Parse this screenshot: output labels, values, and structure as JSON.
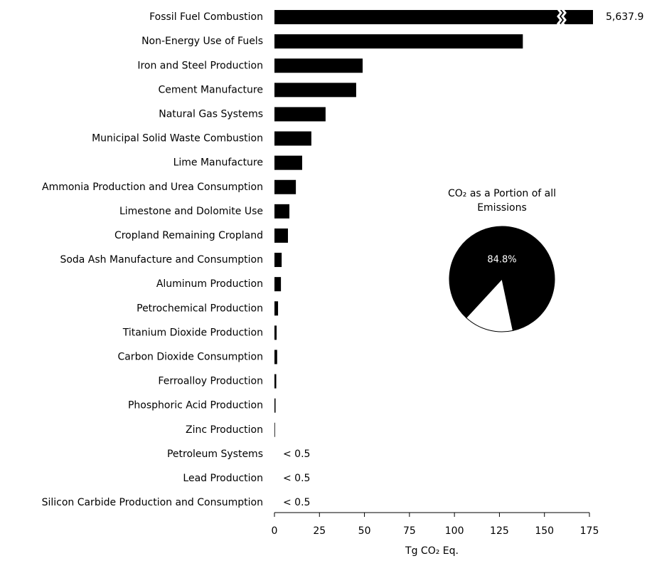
{
  "chart_data": [
    {
      "type": "hbar",
      "categories": [
        "Fossil Fuel Combustion",
        "Non-Energy Use of Fuels",
        "Iron and Steel Production",
        "Cement Manufacture",
        "Natural Gas Systems",
        "Municipal Solid Waste Combustion",
        "Lime Manufacture",
        "Ammonia Production and Urea Consumption",
        "Limestone and Dolomite Use",
        "Cropland Remaining Cropland",
        "Soda Ash Manufacture and Consumption",
        "Aluminum Production",
        "Petrochemical Production",
        "Titanium Dioxide Production",
        "Carbon Dioxide Consumption",
        "Ferroalloy Production",
        "Phosphoric Acid Production",
        "Zinc Production",
        "Petroleum Systems",
        "Lead Production",
        "Silicon Carbide Production and Consumption"
      ],
      "values": [
        5637.9,
        138,
        49,
        45.4,
        28.4,
        20.5,
        15.4,
        11.9,
        8.3,
        7.5,
        4,
        3.6,
        2,
        1.2,
        1.5,
        1,
        0.6,
        0.3,
        null,
        null,
        null
      ],
      "value_labels": [
        "5,637.9",
        null,
        null,
        null,
        null,
        null,
        null,
        null,
        null,
        null,
        null,
        null,
        null,
        null,
        null,
        null,
        null,
        null,
        "< 0.5",
        "< 0.5",
        "< 0.5"
      ],
      "color": "#000000",
      "xlim": [
        0,
        175
      ],
      "xticks": [
        0,
        25,
        50,
        75,
        100,
        125,
        150,
        175
      ],
      "xlabel": "Tg CO₂ Eq."
    },
    {
      "type": "pie",
      "title": "CO₂ as a Portion of all Emissions",
      "values": [
        84.8,
        15.2
      ],
      "value_labels": [
        "84.8%",
        null
      ],
      "colors": [
        "#000000",
        "#ffffff"
      ]
    }
  ]
}
